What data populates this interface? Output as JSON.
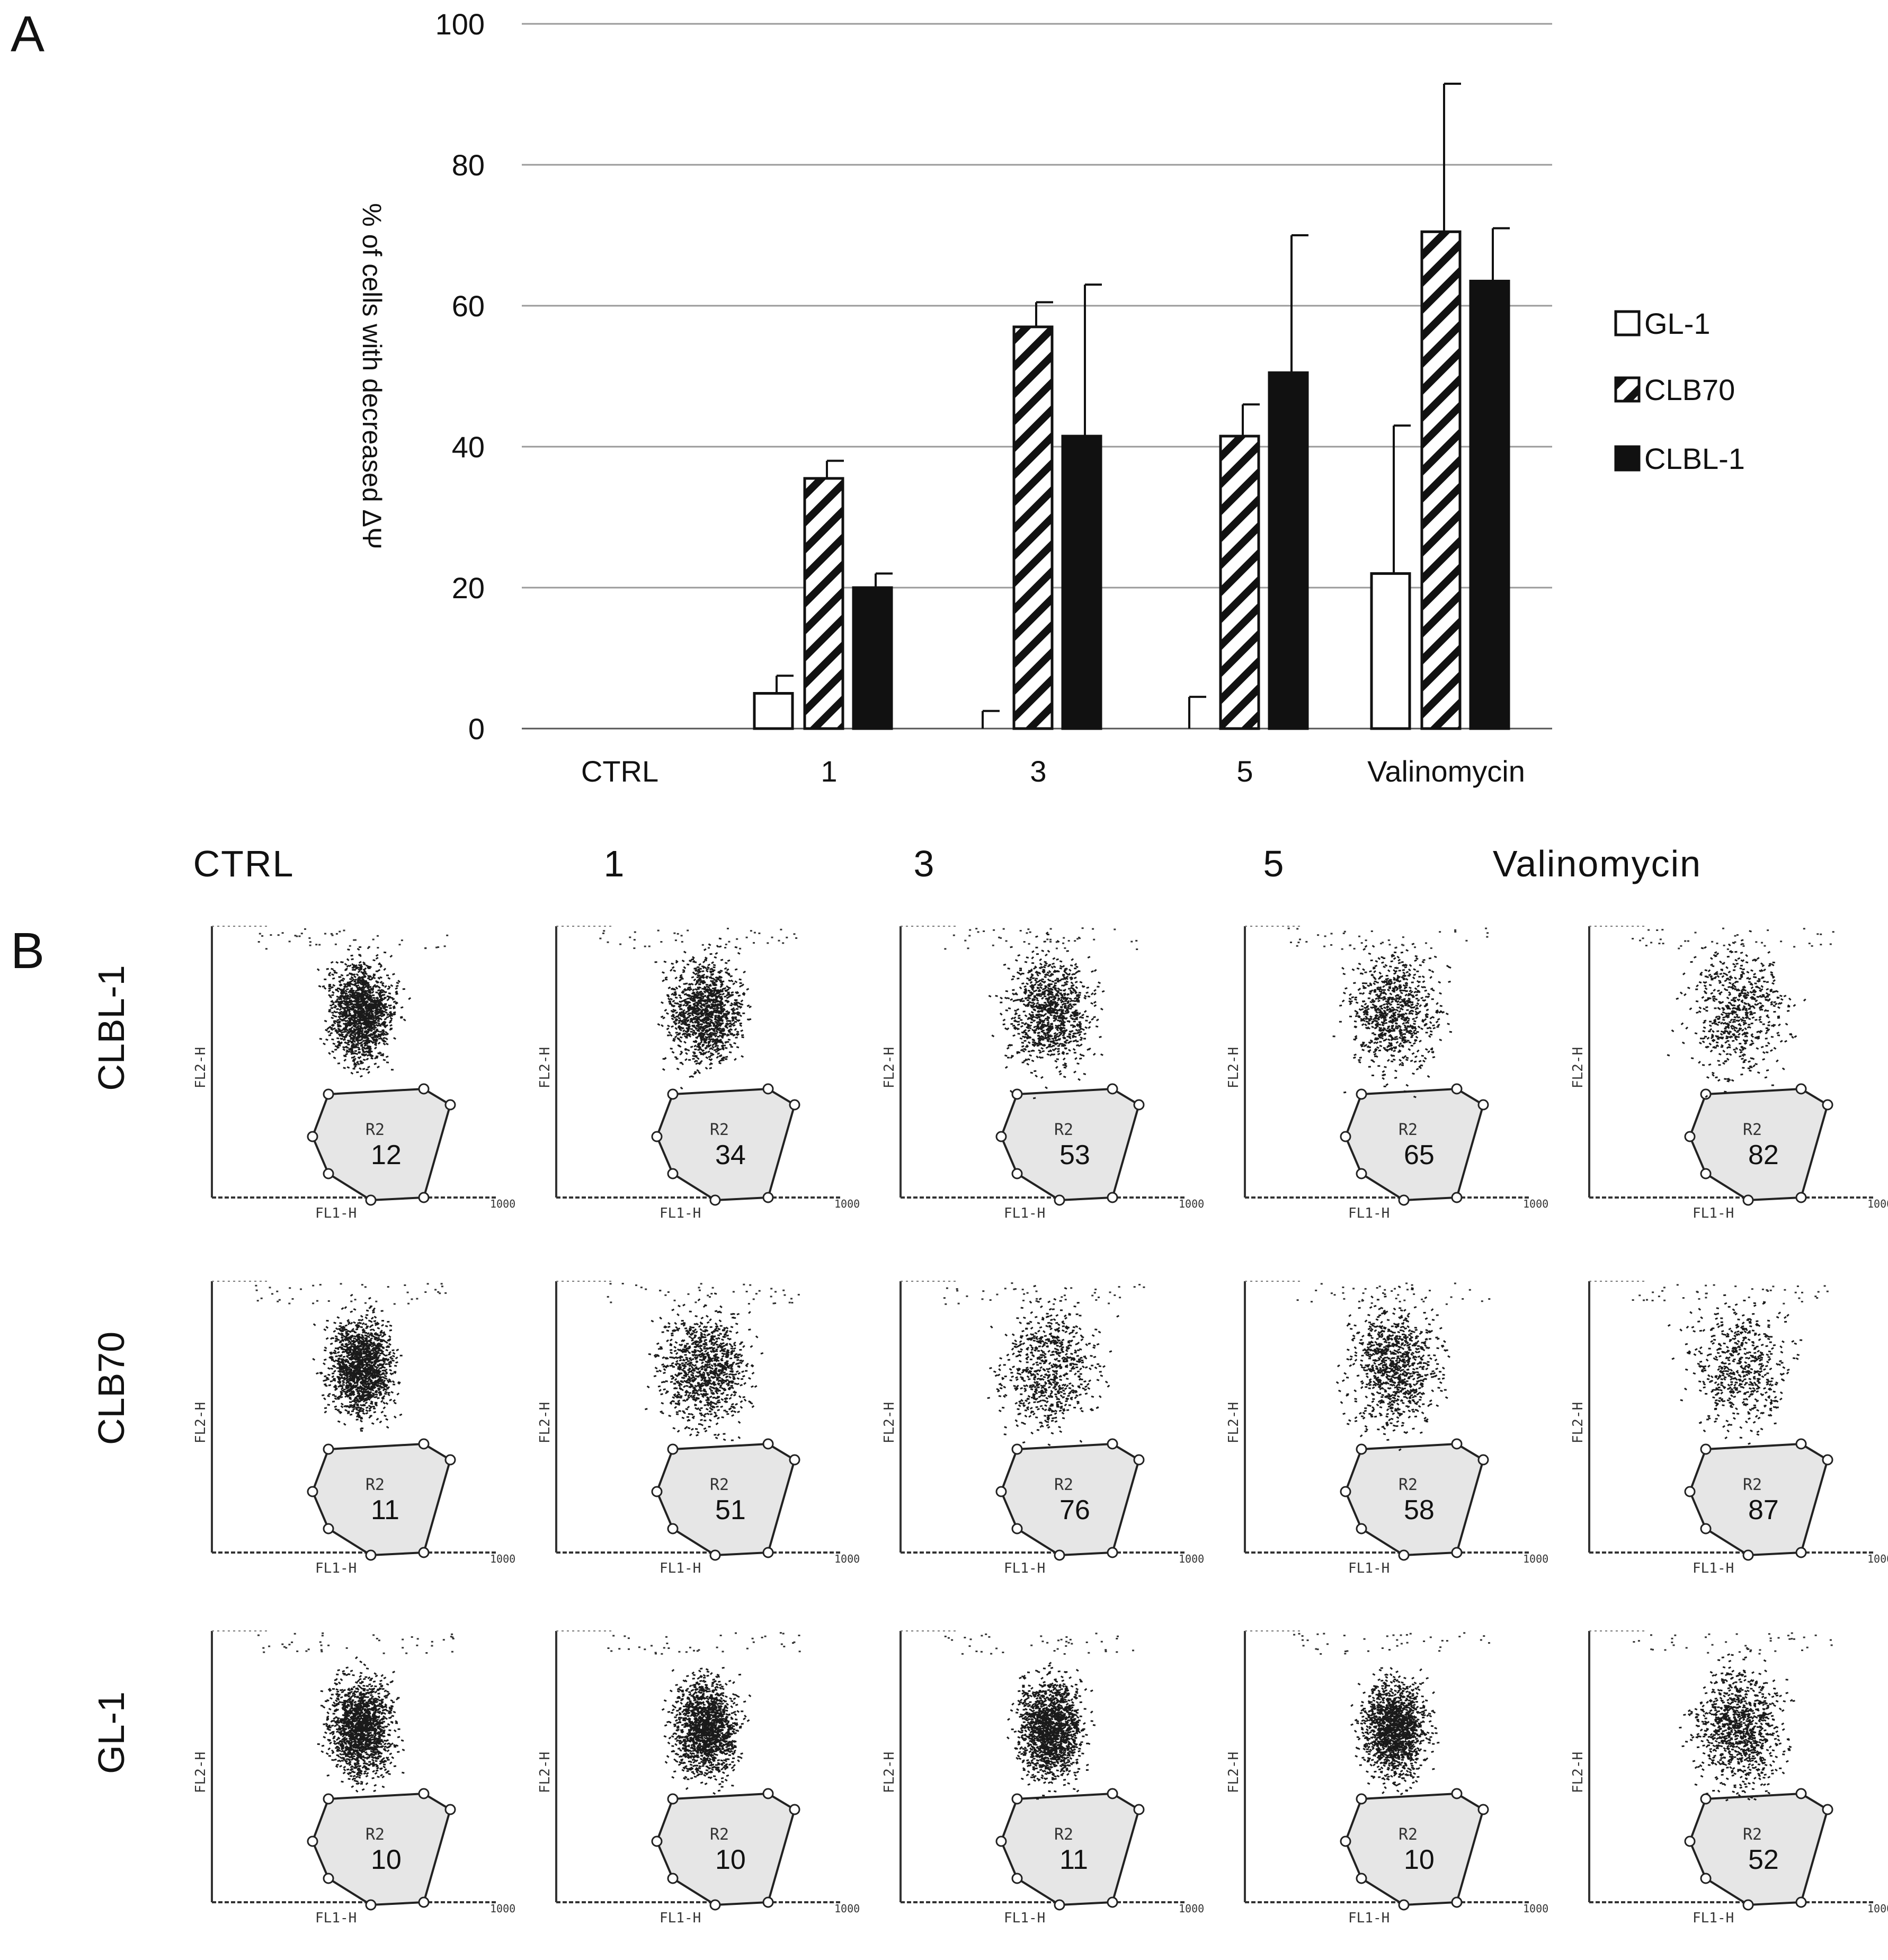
{
  "panel_a_label": "A",
  "panel_b_label": "B",
  "chart_data": {
    "type": "bar",
    "title": "",
    "xlabel": "",
    "ylabel": "% of cells with decreased ΔΨ",
    "ylim": [
      0,
      100
    ],
    "yticks": [
      "0",
      "20",
      "40",
      "60",
      "80",
      "100"
    ],
    "grid": true,
    "categories": [
      "CTRL",
      "1",
      "3",
      "5",
      "Valinomycin"
    ],
    "series": [
      {
        "name": "GL-1",
        "pattern": "white",
        "values": [
          0,
          5,
          0,
          0,
          22
        ],
        "errors": [
          0,
          2.5,
          2.5,
          4.5,
          21
        ]
      },
      {
        "name": "CLB70",
        "pattern": "hatched",
        "values": [
          0,
          35.5,
          57,
          41.5,
          70.5
        ],
        "errors": [
          0,
          2.5,
          3.5,
          4.5,
          21
        ]
      },
      {
        "name": "CLBL-1",
        "pattern": "black",
        "values": [
          0,
          20,
          41.5,
          50.5,
          63.5
        ],
        "errors": [
          0,
          2,
          21.5,
          19.5,
          7.5
        ]
      }
    ],
    "legend_position": "right"
  },
  "panel_b": {
    "columns": [
      "CTRL",
      "1",
      "3",
      "5",
      "Valinomycin"
    ],
    "rows": [
      {
        "name": "CLBL-1",
        "values": [
          "12",
          "34",
          "53",
          "65",
          "82"
        ]
      },
      {
        "name": "CLB70",
        "values": [
          "11",
          "51",
          "76",
          "58",
          "87"
        ]
      },
      {
        "name": "GL-1",
        "values": [
          "10",
          "10",
          "11",
          "10",
          "52"
        ]
      }
    ],
    "gate_label": "R2",
    "x_axis_label": "FL1-H",
    "y_axis_label": "FL2-H",
    "axis_max_label": "1000"
  },
  "colors": {
    "ink": "#111111",
    "grid": "#9a9a9a",
    "gate_fill": "#e6e6e6"
  }
}
